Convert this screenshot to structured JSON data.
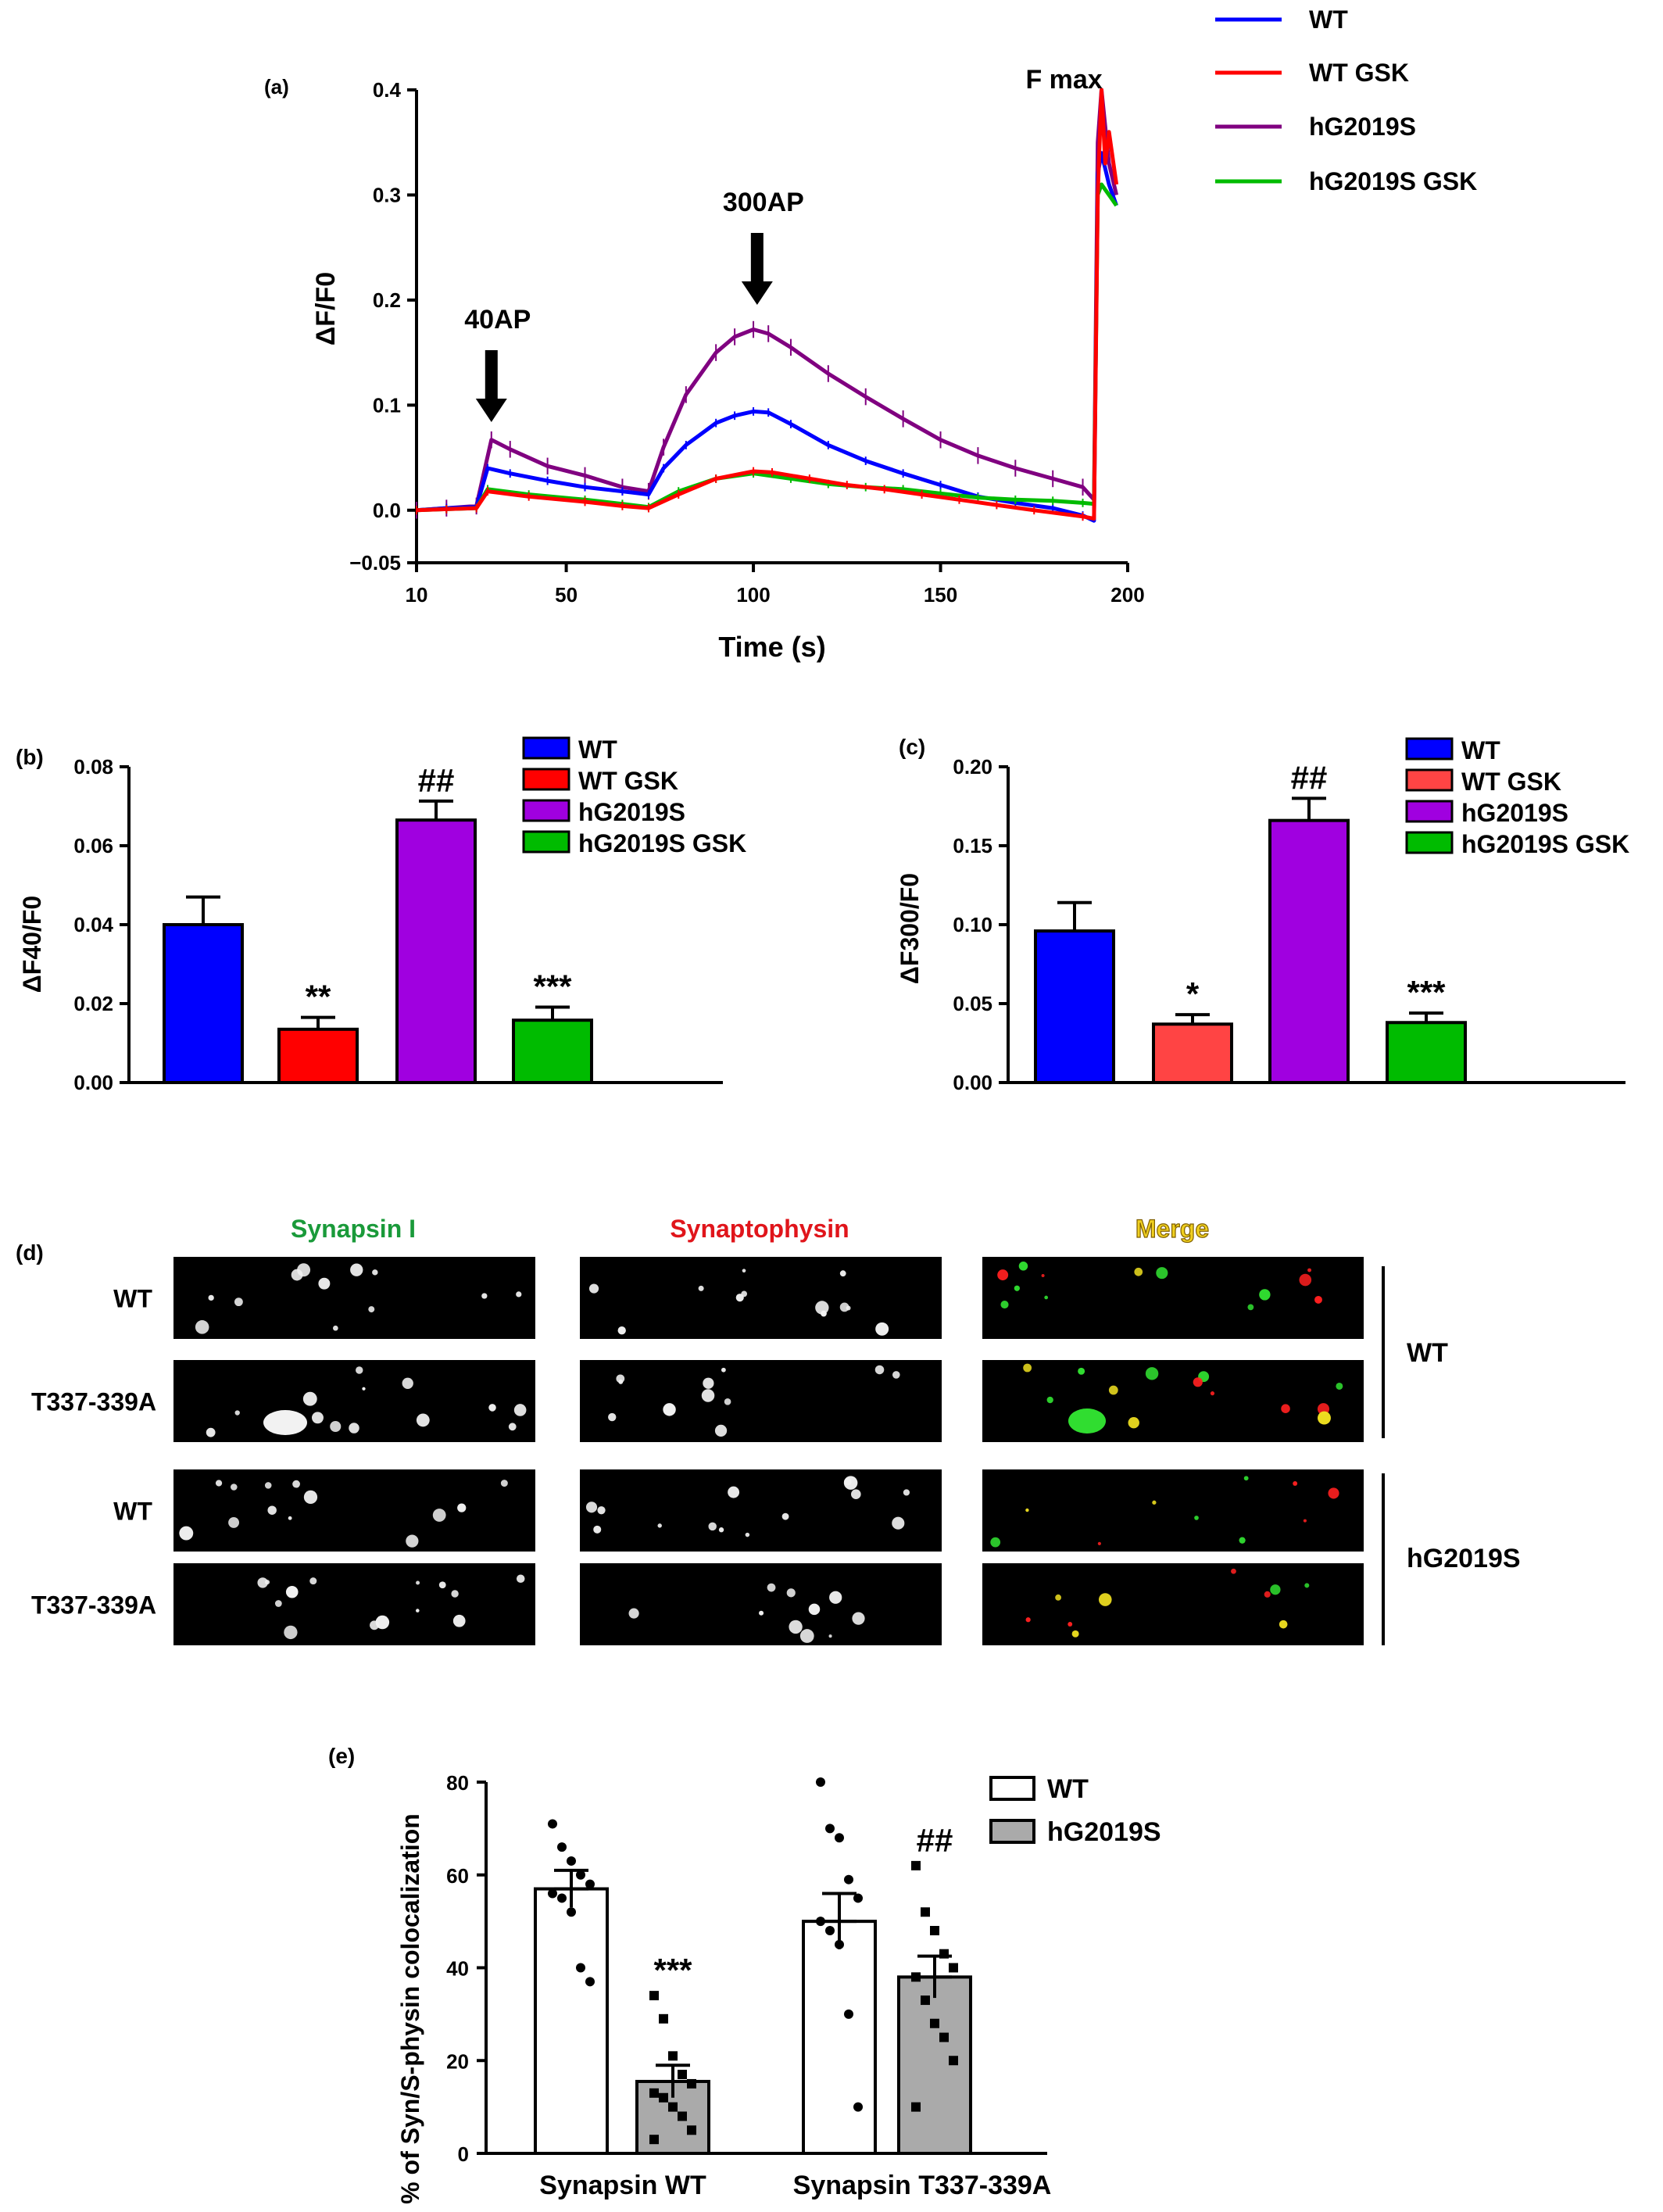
{
  "chart_data": [
    {
      "panel": "(a)",
      "type": "line",
      "xlabel": "Time (s)",
      "ylabel": "ΔF/F0",
      "xlim": [
        10,
        200
      ],
      "ylim": [
        -0.05,
        0.4
      ],
      "x_ticks": [
        10,
        50,
        100,
        150,
        200
      ],
      "y_ticks": [
        -0.05,
        0.0,
        0.1,
        0.2,
        0.3,
        0.4
      ],
      "y_tick_labels": [
        "−0.05",
        "0.0",
        "0.1",
        "0.2",
        "0.3",
        "0.4"
      ],
      "legend_position": "top-right",
      "annotations": [
        {
          "text": "40AP",
          "x": 30,
          "arrow": true
        },
        {
          "text": "300AP",
          "x": 101,
          "arrow": true
        },
        {
          "text": "F max",
          "x": 183,
          "arrow": false
        }
      ],
      "series": [
        {
          "name": "WT",
          "color": "#0000ff",
          "points": [
            [
              10,
              0
            ],
            [
              18,
              0.002
            ],
            [
              26,
              0.003
            ],
            [
              29,
              0.04
            ],
            [
              35,
              0.035
            ],
            [
              45,
              0.028
            ],
            [
              55,
              0.022
            ],
            [
              65,
              0.018
            ],
            [
              72,
              0.015
            ],
            [
              76,
              0.04
            ],
            [
              82,
              0.062
            ],
            [
              90,
              0.083
            ],
            [
              95,
              0.09
            ],
            [
              100,
              0.094
            ],
            [
              104,
              0.093
            ],
            [
              110,
              0.082
            ],
            [
              120,
              0.062
            ],
            [
              130,
              0.047
            ],
            [
              140,
              0.035
            ],
            [
              150,
              0.024
            ],
            [
              160,
              0.013
            ],
            [
              170,
              0.007
            ],
            [
              180,
              0.002
            ],
            [
              188,
              -0.005
            ],
            [
              191,
              -0.01
            ],
            [
              192,
              0.32
            ],
            [
              193,
              0.34
            ],
            [
              195,
              0.31
            ],
            [
              197,
              0.29
            ]
          ]
        },
        {
          "name": "WT GSK",
          "color": "#ff0000",
          "points": [
            [
              10,
              0
            ],
            [
              18,
              0.001
            ],
            [
              26,
              0.002
            ],
            [
              29,
              0.018
            ],
            [
              40,
              0.013
            ],
            [
              55,
              0.008
            ],
            [
              65,
              0.004
            ],
            [
              72,
              0.002
            ],
            [
              80,
              0.015
            ],
            [
              90,
              0.03
            ],
            [
              100,
              0.037
            ],
            [
              105,
              0.036
            ],
            [
              115,
              0.03
            ],
            [
              125,
              0.024
            ],
            [
              135,
              0.02
            ],
            [
              145,
              0.015
            ],
            [
              155,
              0.01
            ],
            [
              165,
              0.005
            ],
            [
              175,
              0
            ],
            [
              188,
              -0.006
            ],
            [
              191,
              -0.008
            ],
            [
              192,
              0.3
            ],
            [
              193,
              0.4
            ],
            [
              194,
              0.33
            ],
            [
              195,
              0.36
            ],
            [
              197,
              0.31
            ]
          ]
        },
        {
          "name": "hG2019S",
          "color": "#800080",
          "points": [
            [
              10,
              0
            ],
            [
              18,
              0.002
            ],
            [
              26,
              0.004
            ],
            [
              30,
              0.067
            ],
            [
              35,
              0.058
            ],
            [
              45,
              0.042
            ],
            [
              55,
              0.033
            ],
            [
              65,
              0.022
            ],
            [
              72,
              0.018
            ],
            [
              76,
              0.06
            ],
            [
              82,
              0.11
            ],
            [
              90,
              0.15
            ],
            [
              95,
              0.165
            ],
            [
              100,
              0.172
            ],
            [
              104,
              0.168
            ],
            [
              110,
              0.155
            ],
            [
              120,
              0.13
            ],
            [
              130,
              0.108
            ],
            [
              140,
              0.087
            ],
            [
              150,
              0.067
            ],
            [
              160,
              0.052
            ],
            [
              170,
              0.04
            ],
            [
              180,
              0.03
            ],
            [
              188,
              0.022
            ],
            [
              191,
              0.01
            ],
            [
              192,
              0.35
            ],
            [
              193,
              0.4
            ],
            [
              195,
              0.33
            ],
            [
              197,
              0.3
            ]
          ]
        },
        {
          "name": "hG2019S GSK",
          "color": "#00bb00",
          "points": [
            [
              10,
              0
            ],
            [
              18,
              0.001
            ],
            [
              26,
              0.002
            ],
            [
              29,
              0.02
            ],
            [
              40,
              0.015
            ],
            [
              55,
              0.01
            ],
            [
              65,
              0.006
            ],
            [
              72,
              0.003
            ],
            [
              80,
              0.018
            ],
            [
              90,
              0.03
            ],
            [
              100,
              0.035
            ],
            [
              110,
              0.03
            ],
            [
              120,
              0.025
            ],
            [
              130,
              0.022
            ],
            [
              140,
              0.02
            ],
            [
              150,
              0.016
            ],
            [
              160,
              0.012
            ],
            [
              170,
              0.01
            ],
            [
              180,
              0.009
            ],
            [
              188,
              0.007
            ],
            [
              191,
              0.006
            ],
            [
              192,
              0.3
            ],
            [
              193,
              0.31
            ],
            [
              195,
              0.3
            ],
            [
              197,
              0.29
            ]
          ]
        }
      ]
    },
    {
      "panel": "(b)",
      "type": "bar",
      "ylabel": "ΔF40/F0",
      "ylim": [
        0,
        0.08
      ],
      "y_ticks": [
        "0.00",
        "0.02",
        "0.04",
        "0.06",
        "0.08"
      ],
      "categories": [
        "WT",
        "WT GSK",
        "hG2019S",
        "hG2019S GSK"
      ],
      "values": [
        0.04,
        0.0135,
        0.0665,
        0.0158
      ],
      "errors": [
        0.007,
        0.003,
        0.0048,
        0.0033
      ],
      "significance": [
        "",
        "**",
        "##",
        "***"
      ],
      "colors": [
        "#0000ff",
        "#ff0000",
        "#a000e0",
        "#00bb00"
      ],
      "legend_position": "top-right"
    },
    {
      "panel": "(c)",
      "type": "bar",
      "ylabel": "ΔF300/F0",
      "ylim": [
        0,
        0.2
      ],
      "y_ticks": [
        "0.00",
        "0.05",
        "0.10",
        "0.15",
        "0.20"
      ],
      "categories": [
        "WT",
        "WT GSK",
        "hG2019S",
        "hG2019S GSK"
      ],
      "values": [
        0.096,
        0.037,
        0.166,
        0.038
      ],
      "errors": [
        0.018,
        0.006,
        0.014,
        0.006
      ],
      "significance": [
        "",
        "*",
        "##",
        "***"
      ],
      "colors": [
        "#0000ff",
        "#ff4444",
        "#a000e0",
        "#00bb00"
      ],
      "legend_position": "top-right"
    },
    {
      "panel": "(e)",
      "type": "bar",
      "ylabel": "% of Syn/S-physin colocalization",
      "ylim": [
        0,
        80
      ],
      "y_ticks": [
        "0",
        "20",
        "40",
        "60",
        "80"
      ],
      "categories": [
        "Synapsin WT",
        "Synapsin T337-339A"
      ],
      "series": [
        {
          "name": "WT",
          "color": "#ffffff",
          "values": [
            57,
            50
          ],
          "errors": [
            4,
            6
          ],
          "points": [
            [
              71,
              66,
              63,
              60,
              58,
              56,
              55,
              52,
              40,
              37
            ],
            [
              80,
              70,
              68,
              59,
              55,
              50,
              48,
              45,
              30,
              10
            ]
          ]
        },
        {
          "name": "hG2019S",
          "color": "#aaaaaa",
          "values": [
            15.5,
            38
          ],
          "errors": [
            3.5,
            4.5
          ],
          "points": [
            [
              34,
              29,
              21,
              17,
              15,
              13,
              12,
              10,
              8,
              5,
              3
            ],
            [
              62,
              52,
              48,
              43,
              40,
              38,
              33,
              28,
              25,
              20,
              10
            ]
          ]
        }
      ],
      "significance": [
        [
          "",
          "***"
        ],
        [
          "",
          "##"
        ]
      ],
      "legend_position": "top-right"
    }
  ],
  "panel_d": {
    "label": "(d)",
    "column_titles": [
      {
        "text": "Synapsin I",
        "color": "#1a9a3a"
      },
      {
        "text": "Synaptophysin",
        "color": "#e0151b"
      },
      {
        "text": "Merge",
        "color": "#f0d020"
      }
    ],
    "row_labels": [
      "WT",
      "T337-339A",
      "WT",
      "T337-339A"
    ],
    "group_labels": [
      "WT",
      "hG2019S"
    ]
  }
}
